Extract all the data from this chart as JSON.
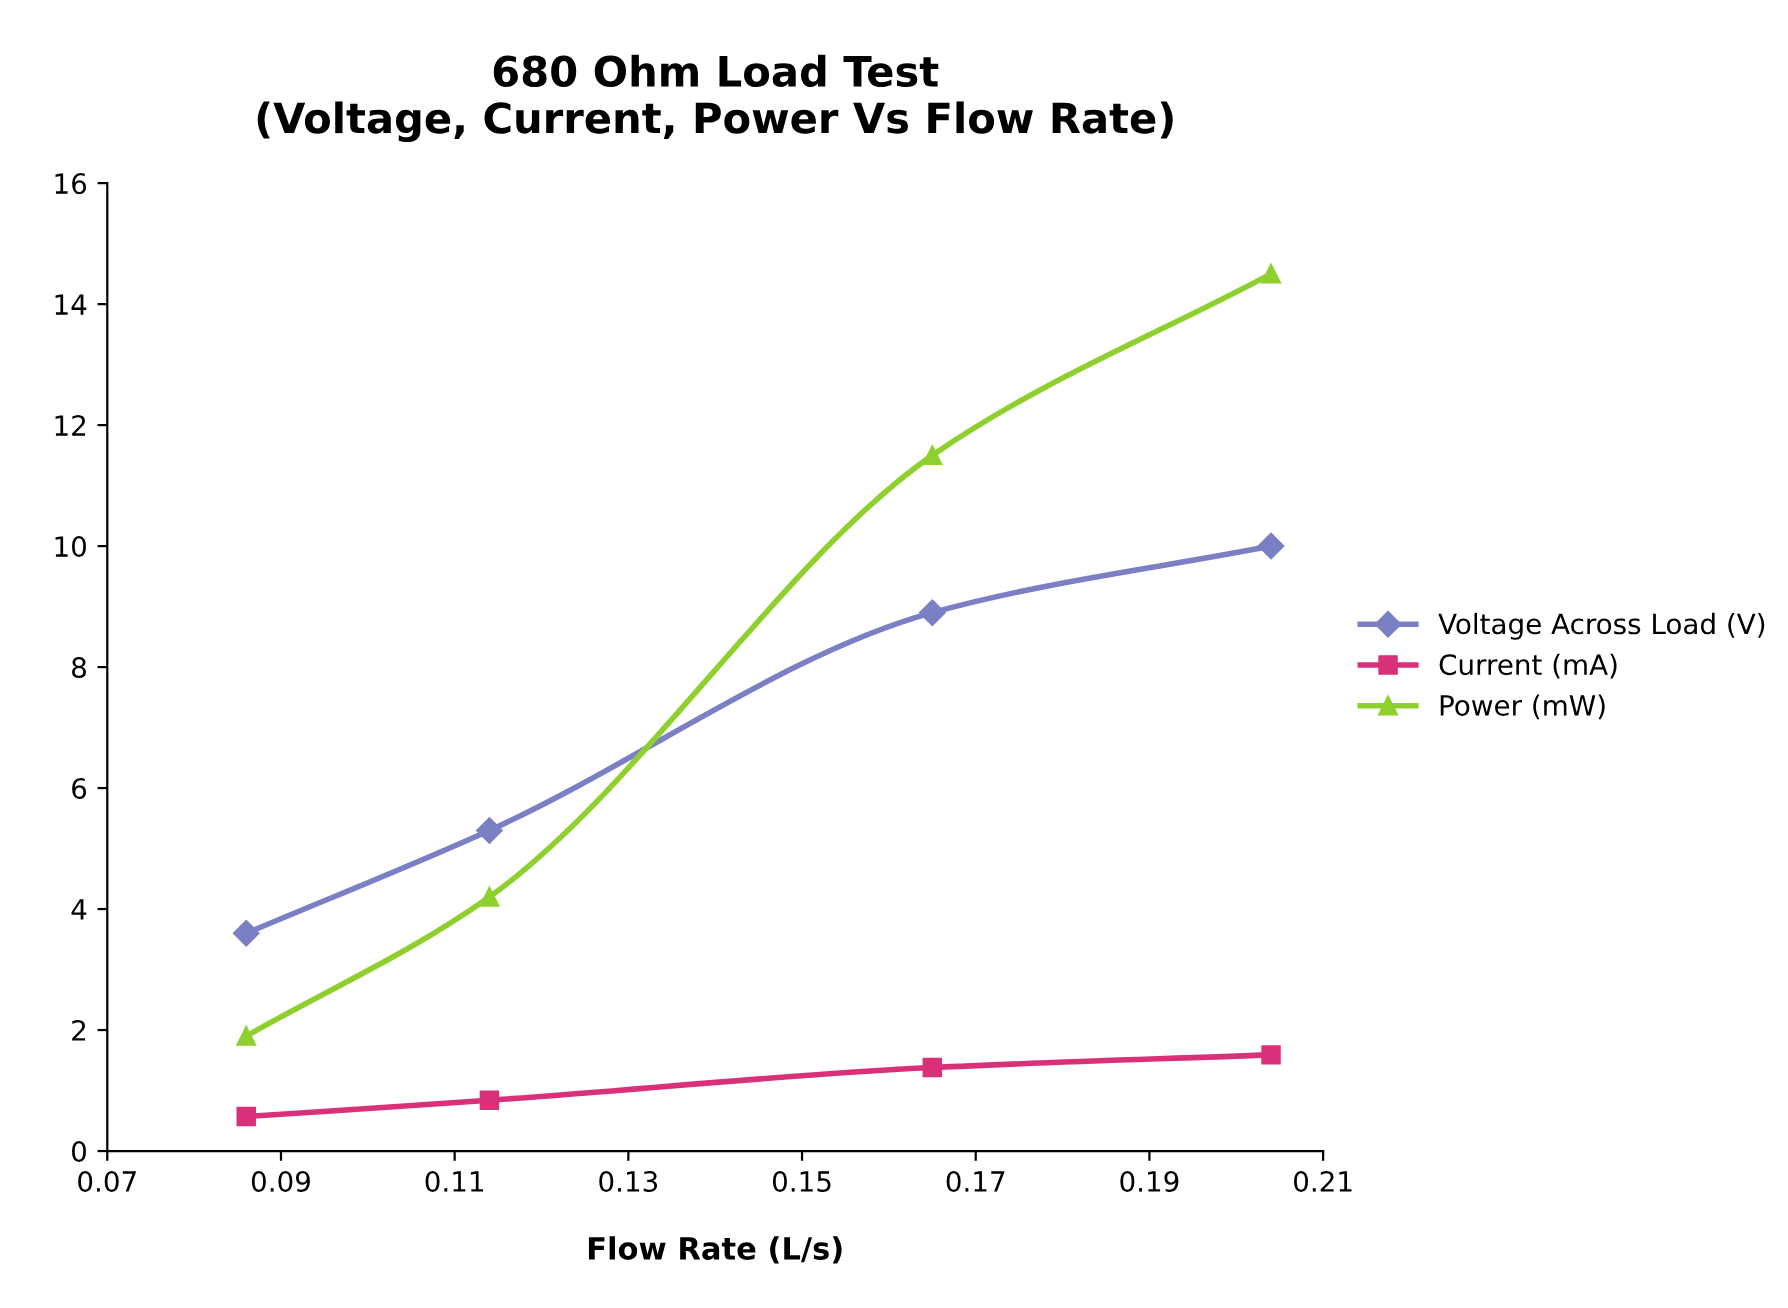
{
  "chart_data": {
    "type": "line",
    "title": "680 Ohm Load Test\n(Voltage, Current, Power Vs Flow Rate)",
    "xlabel": "Flow Rate (L/s)",
    "x": [
      0.086,
      0.114,
      0.165,
      0.204
    ],
    "series": [
      {
        "name": "Voltage Across Load (V)",
        "color": "#7b7fc4",
        "marker": "diamond",
        "values": [
          3.6,
          5.3,
          8.9,
          10.0
        ]
      },
      {
        "name": "Current (mA)",
        "color": "#d9307a",
        "marker": "square",
        "values": [
          0.57,
          0.84,
          1.38,
          1.59
        ]
      },
      {
        "name": "Power (mW)",
        "color": "#8fd02e",
        "marker": "triangle",
        "values": [
          1.9,
          4.2,
          11.5,
          14.5
        ]
      }
    ],
    "xlim": [
      0.07,
      0.21
    ],
    "xticks": [
      {
        "value": 0.07,
        "label": "0.07"
      },
      {
        "value": 0.09,
        "label": "0.09"
      },
      {
        "value": 0.11,
        "label": "0.11"
      },
      {
        "value": 0.13,
        "label": "0.13"
      },
      {
        "value": 0.15,
        "label": "0.15"
      },
      {
        "value": 0.17,
        "label": "0.17"
      },
      {
        "value": 0.19,
        "label": "0.19"
      },
      {
        "value": 0.21,
        "label": "0.21"
      }
    ],
    "ylim": [
      0,
      16
    ],
    "yticks": [
      0,
      2,
      4,
      6,
      8,
      10,
      12,
      14,
      16
    ],
    "grid": false,
    "legend": "right",
    "line_style": "solid"
  }
}
